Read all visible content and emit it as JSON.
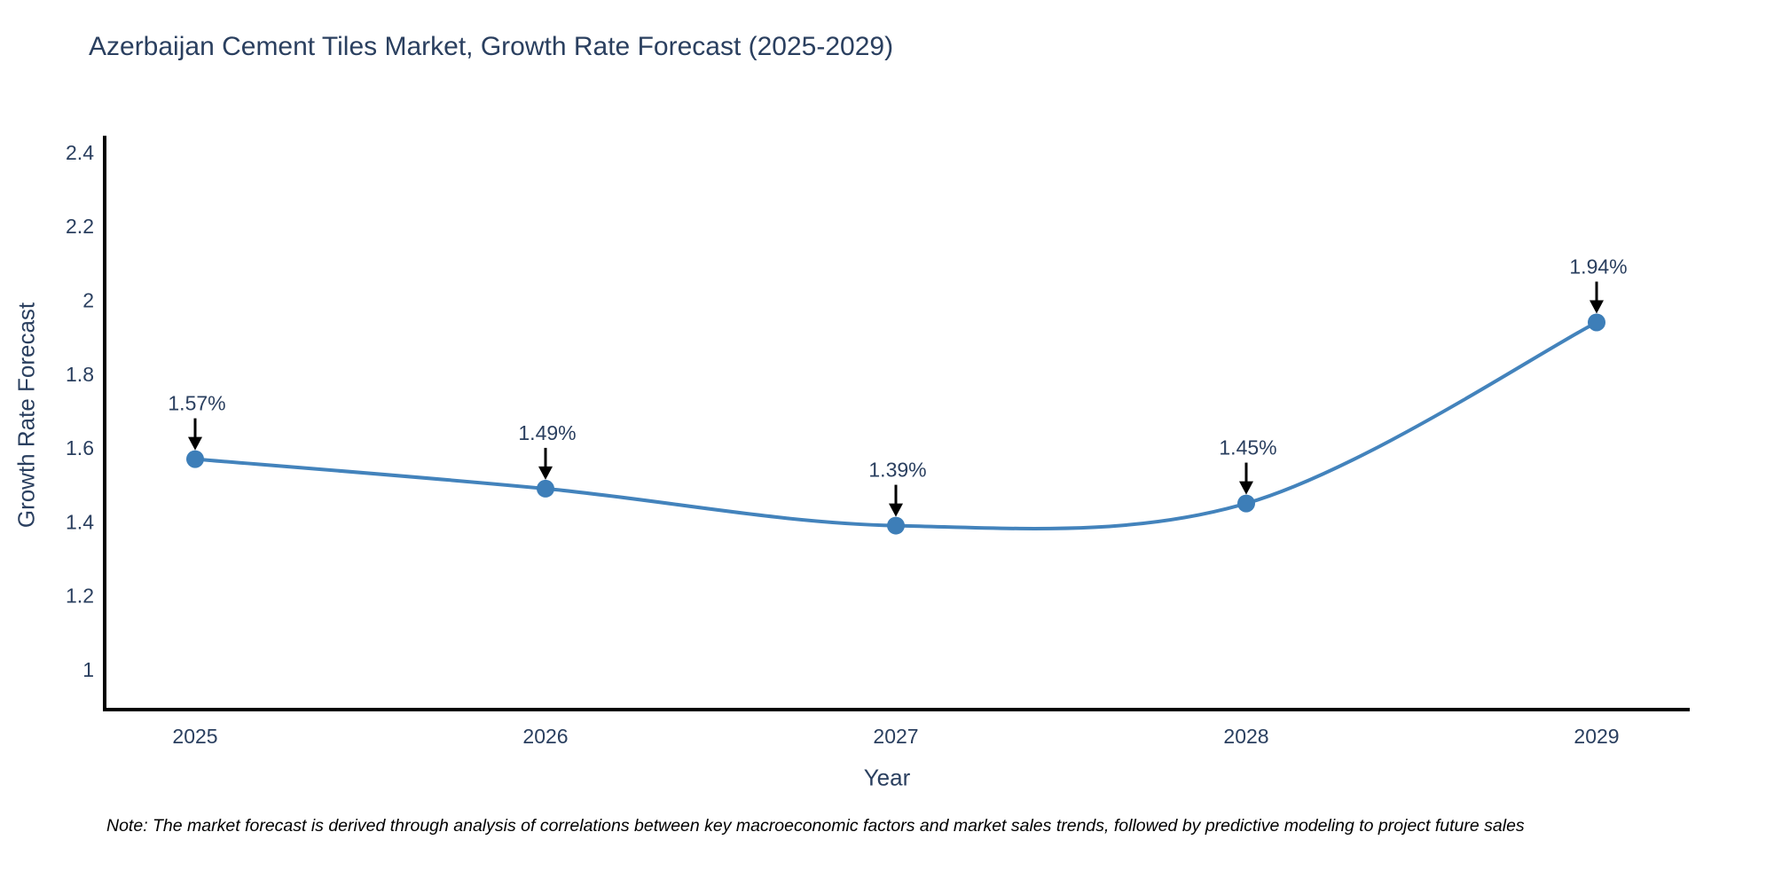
{
  "note": "Note: The market forecast is derived through analysis of correlations between key macroeconomic factors and market sales trends, followed by predictive modeling to project future sales",
  "chart_data": {
    "type": "line",
    "title": "Azerbaijan Cement Tiles Market, Growth Rate Forecast (2025-2029)",
    "xlabel": "Year",
    "ylabel": "Growth Rate Forecast",
    "x": [
      2025,
      2026,
      2027,
      2028,
      2029
    ],
    "y": [
      1.57,
      1.49,
      1.39,
      1.45,
      1.94
    ],
    "point_labels": [
      "1.57%",
      "1.49%",
      "1.39%",
      "1.45%",
      "1.94%"
    ],
    "x_tick_labels": [
      "2025",
      "2026",
      "2027",
      "2028",
      "2029"
    ],
    "y_tick_labels": [
      "2.4",
      "2.2",
      "2",
      "1.8",
      "1.6",
      "1.4",
      "1.2",
      "1"
    ],
    "y_tick_values": [
      2.4,
      2.2,
      2.0,
      1.8,
      1.6,
      1.4,
      1.2,
      1.0
    ],
    "ylim": [
      0.89,
      2.45
    ],
    "line_shape": "spline",
    "grid": false,
    "legend_position": "none",
    "colors": {
      "line": "#4383bc",
      "marker": "#3d7eb8",
      "axis": "#000000",
      "arrow": "#000000",
      "text": "#2a3f5f"
    }
  }
}
